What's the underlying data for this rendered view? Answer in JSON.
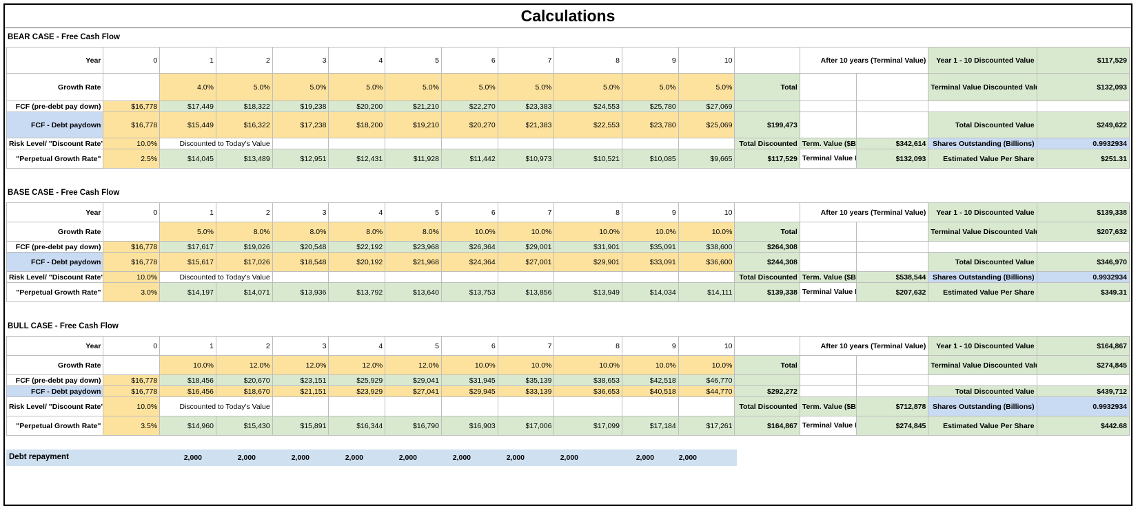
{
  "title": "Calculations",
  "labels": {
    "year": "Year",
    "growth_rate": "Growth Rate",
    "fcf_pre": "FCF (pre-debt pay down)",
    "fcf_debt": "FCF - Debt paydown",
    "risk": "Risk Level/ \"Discount Rate\"",
    "perp": "\"Perpetual Growth Rate\"",
    "discounted_note": "Discounted to Today's Value",
    "total": "Total",
    "total_discounted": "Total Discounted",
    "after10": "After 10 years (Terminal Value)",
    "term_value": "Term. Value ($Bil)",
    "term_value_disc": "Terminal Value Discounted (Bil)",
    "y1_10": "Year 1 - 10 Discounted Value",
    "tv_disc_value": "Terminal Value Discounted Value",
    "total_disc_value": "Total Discounted Value",
    "shares": "Shares Outstanding (Billions)",
    "est_value": "Estimated Value Per Share"
  },
  "years": [
    "0",
    "1",
    "2",
    "3",
    "4",
    "5",
    "6",
    "7",
    "8",
    "9",
    "10"
  ],
  "cases": [
    {
      "title": "BEAR CASE - Free Cash Flow",
      "growth": [
        "4.0%",
        "5.0%",
        "5.0%",
        "5.0%",
        "5.0%",
        "5.0%",
        "5.0%",
        "5.0%",
        "5.0%",
        "5.0%"
      ],
      "fcf_pre": [
        "$16,778",
        "$17,449",
        "$18,322",
        "$19,238",
        "$20,200",
        "$21,210",
        "$22,270",
        "$23,383",
        "$24,553",
        "$25,780",
        "$27,069"
      ],
      "fcf_pre_total": "",
      "fcf_debt": [
        "$16,778",
        "$15,449",
        "$16,322",
        "$17,238",
        "$18,200",
        "$19,210",
        "$20,270",
        "$21,383",
        "$22,553",
        "$23,780",
        "$25,069"
      ],
      "fcf_debt_total": "$199,473",
      "risk": "10.0%",
      "perp": "2.5%",
      "discounted": [
        "$14,045",
        "$13,489",
        "$12,951",
        "$12,431",
        "$11,928",
        "$11,442",
        "$10,973",
        "$10,521",
        "$10,085",
        "$9,665"
      ],
      "total_discounted": "$117,529",
      "term_value": "$342,614",
      "term_value_disc": "$132,093",
      "y1_10": "$117,529",
      "tv_disc_value": "$132,093",
      "total_disc_value": "$249,622",
      "shares": "0.9932934",
      "est_value": "$251.31"
    },
    {
      "title": "BASE CASE - Free Cash Flow",
      "growth": [
        "5.0%",
        "8.0%",
        "8.0%",
        "8.0%",
        "8.0%",
        "10.0%",
        "10.0%",
        "10.0%",
        "10.0%",
        "10.0%"
      ],
      "fcf_pre": [
        "$16,778",
        "$17,617",
        "$19,026",
        "$20,548",
        "$22,192",
        "$23,968",
        "$26,364",
        "$29,001",
        "$31,901",
        "$35,091",
        "$38,600"
      ],
      "fcf_pre_total": "$264,308",
      "fcf_debt": [
        "$16,778",
        "$15,617",
        "$17,026",
        "$18,548",
        "$20,192",
        "$21,968",
        "$24,364",
        "$27,001",
        "$29,901",
        "$33,091",
        "$36,600"
      ],
      "fcf_debt_total": "$244,308",
      "risk": "10.0%",
      "perp": "3.0%",
      "discounted": [
        "$14,197",
        "$14,071",
        "$13,936",
        "$13,792",
        "$13,640",
        "$13,753",
        "$13,856",
        "$13,949",
        "$14,034",
        "$14,111"
      ],
      "total_discounted": "$139,338",
      "term_value": "$538,544",
      "term_value_disc": "$207,632",
      "y1_10": "$139,338",
      "tv_disc_value": "$207,632",
      "total_disc_value": "$346,970",
      "shares": "0.9932934",
      "est_value": "$349.31"
    },
    {
      "title": "BULL CASE - Free Cash Flow",
      "growth": [
        "10.0%",
        "12.0%",
        "12.0%",
        "12.0%",
        "12.0%",
        "10.0%",
        "10.0%",
        "10.0%",
        "10.0%",
        "10.0%"
      ],
      "fcf_pre": [
        "$16,778",
        "$18,456",
        "$20,670",
        "$23,151",
        "$25,929",
        "$29,041",
        "$31,945",
        "$35,139",
        "$38,653",
        "$42,518",
        "$46,770"
      ],
      "fcf_pre_total": "",
      "fcf_debt": [
        "$16,778",
        "$16,456",
        "$18,670",
        "$21,151",
        "$23,929",
        "$27,041",
        "$29,945",
        "$33,139",
        "$36,653",
        "$40,518",
        "$44,770"
      ],
      "fcf_debt_total": "$292,272",
      "risk": "10.0%",
      "perp": "3.5%",
      "discounted": [
        "$14,960",
        "$15,430",
        "$15,891",
        "$16,344",
        "$16,790",
        "$16,903",
        "$17,006",
        "$17,099",
        "$17,184",
        "$17,261"
      ],
      "total_discounted": "$164,867",
      "term_value": "$712,878",
      "term_value_disc": "$274,845",
      "y1_10": "$164,867",
      "tv_disc_value": "$274,845",
      "total_disc_value": "$439,712",
      "shares": "0.9932934",
      "est_value": "$442.68"
    }
  ],
  "debt": {
    "label": "Debt repayment",
    "values": [
      "2,000",
      "2,000",
      "2,000",
      "2,000",
      "2,000",
      "2,000",
      "2,000",
      "2,000",
      "2,000",
      "2,000"
    ]
  }
}
